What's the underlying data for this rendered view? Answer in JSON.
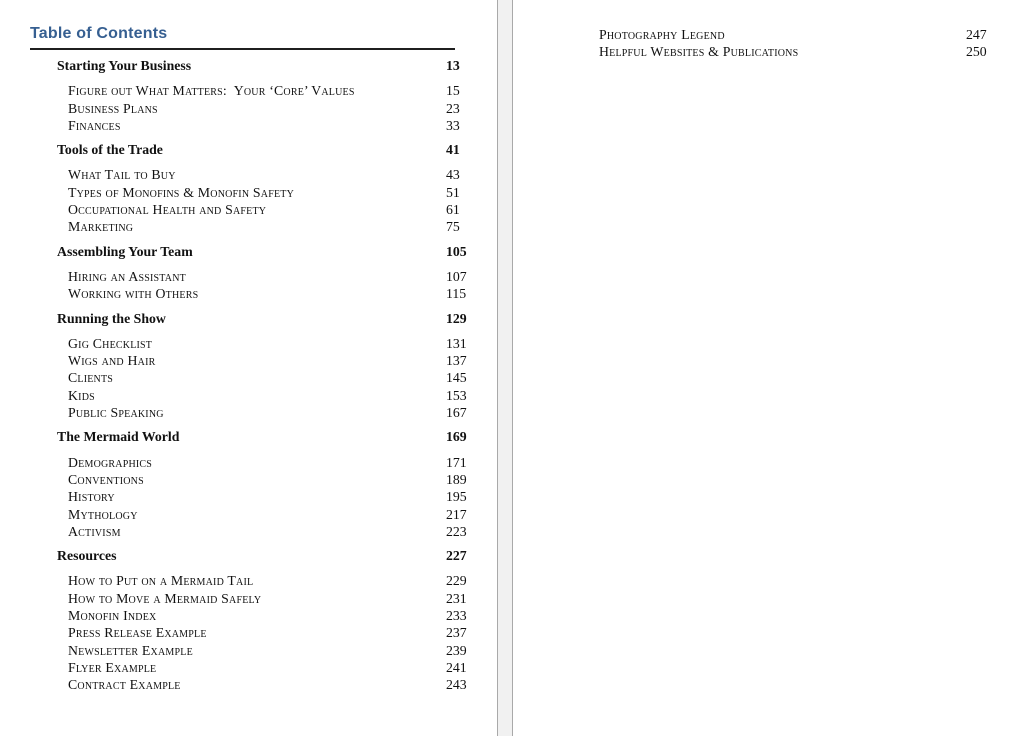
{
  "colors": {
    "heading_accent": "#365F91",
    "page_background": "#ffffff",
    "pasteboard_background": "#f1f1f1"
  },
  "left_page": {
    "heading": "Table of Contents",
    "entries": [
      {
        "level": "chapter",
        "title": "Starting Your Business",
        "page": "13"
      },
      {
        "level": "sub",
        "title": "Figure out What Matters:  Your ‘Core’ Values",
        "page": "15"
      },
      {
        "level": "sub",
        "title": "Business Plans",
        "page": "23"
      },
      {
        "level": "sub",
        "title": "Finances",
        "page": "33"
      },
      {
        "level": "chapter",
        "title": "Tools of the Trade",
        "page": "41"
      },
      {
        "level": "sub",
        "title": "What Tail to Buy",
        "page": "43"
      },
      {
        "level": "sub",
        "title": "Types of Monofins & Monofin Safety",
        "page": "51"
      },
      {
        "level": "sub",
        "title": "Occupational Health and Safety",
        "page": "61"
      },
      {
        "level": "sub",
        "title": "Marketing",
        "page": "75"
      },
      {
        "level": "chapter",
        "title": "Assembling Your Team",
        "page": "105"
      },
      {
        "level": "sub",
        "title": "Hiring an Assistant",
        "page": "107"
      },
      {
        "level": "sub",
        "title": "Working with Others",
        "page": "115"
      },
      {
        "level": "chapter",
        "title": "Running the Show",
        "page": "129"
      },
      {
        "level": "sub",
        "title": "Gig Checklist",
        "page": "131"
      },
      {
        "level": "sub",
        "title": "Wigs and Hair",
        "page": "137"
      },
      {
        "level": "sub",
        "title": "Clients",
        "page": "145"
      },
      {
        "level": "sub",
        "title": "Kids",
        "page": "153"
      },
      {
        "level": "sub",
        "title": "Public Speaking",
        "page": "167"
      },
      {
        "level": "chapter",
        "title": "The Mermaid World",
        "page": "169"
      },
      {
        "level": "sub",
        "title": "Demographics",
        "page": "171"
      },
      {
        "level": "sub",
        "title": "Conventions",
        "page": "189"
      },
      {
        "level": "sub",
        "title": "History",
        "page": "195"
      },
      {
        "level": "sub",
        "title": "Mythology",
        "page": "217"
      },
      {
        "level": "sub",
        "title": "Activism",
        "page": "223"
      },
      {
        "level": "chapter",
        "title": "Resources",
        "page": "227"
      },
      {
        "level": "sub",
        "title": "How to Put on a Mermaid Tail",
        "page": "229"
      },
      {
        "level": "sub",
        "title": "How to Move a Mermaid Safely",
        "page": "231"
      },
      {
        "level": "sub",
        "title": "Monofin Index",
        "page": "233"
      },
      {
        "level": "sub",
        "title": "Press Release Example",
        "page": "237"
      },
      {
        "level": "sub",
        "title": "Newsletter Example",
        "page": "239"
      },
      {
        "level": "sub",
        "title": "Flyer Example",
        "page": "241"
      },
      {
        "level": "sub",
        "title": "Contract Example",
        "page": "243"
      }
    ]
  },
  "right_page": {
    "entries": [
      {
        "level": "sub",
        "title": "Photography Legend",
        "page": "247"
      },
      {
        "level": "sub",
        "title": "Helpful Websites & Publications",
        "page": "250"
      }
    ]
  }
}
